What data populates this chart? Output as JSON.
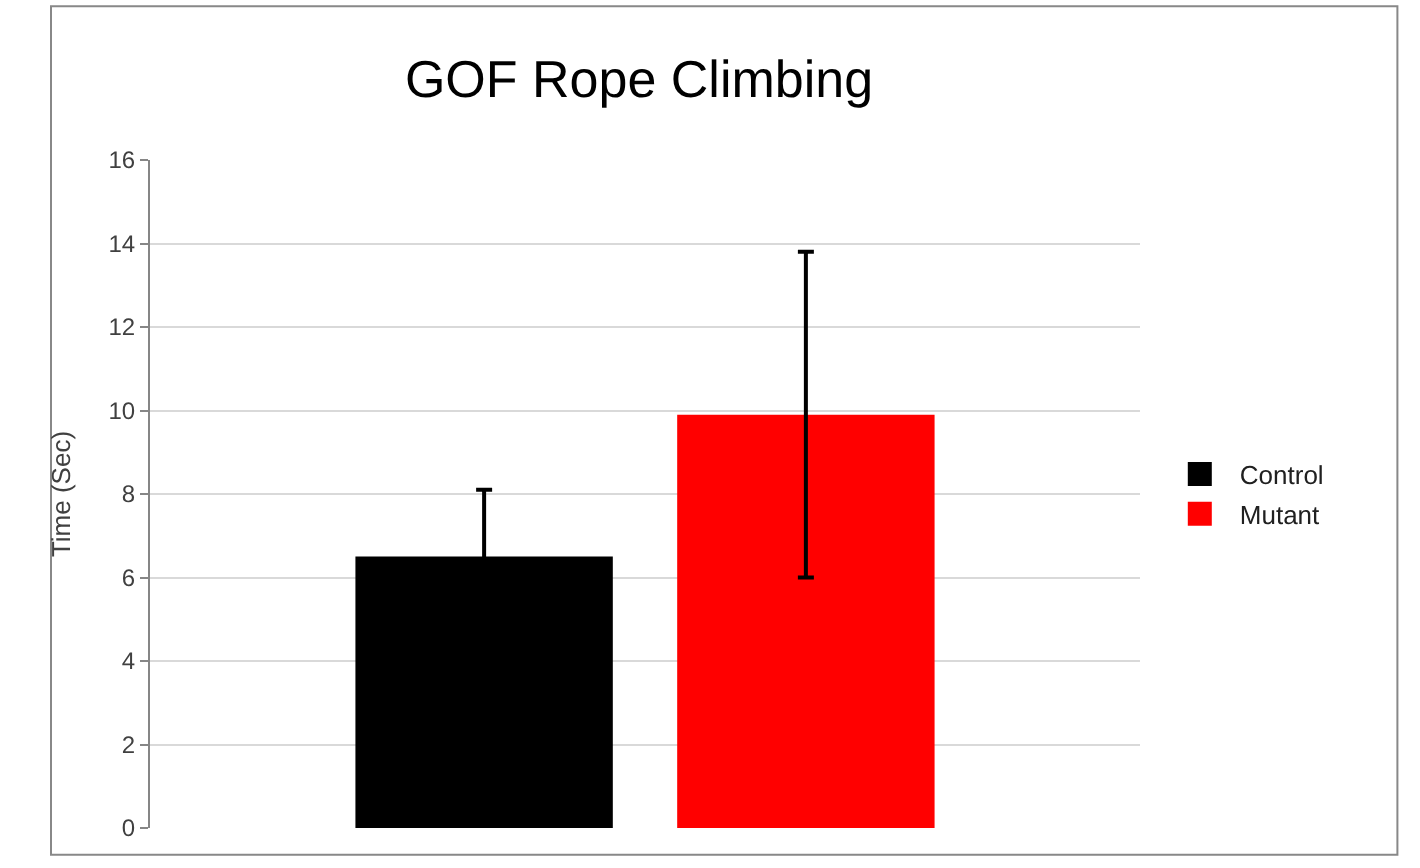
{
  "chart_data": {
    "type": "bar",
    "title": "GOF Rope Climbing",
    "ylabel": "Time (Sec)",
    "categories": [
      null
    ],
    "series": [
      {
        "name": "Control",
        "color": "#000000",
        "values": [
          6.5
        ],
        "errors": [
          1.6
        ]
      },
      {
        "name": "Mutant",
        "color": "#ff0000",
        "values": [
          9.9
        ],
        "errors": [
          3.9
        ]
      }
    ],
    "ylim": [
      0,
      16
    ],
    "yticks": [
      0,
      2,
      4,
      6,
      8,
      10,
      12,
      14,
      16
    ],
    "grid": "y",
    "legend": "right"
  }
}
